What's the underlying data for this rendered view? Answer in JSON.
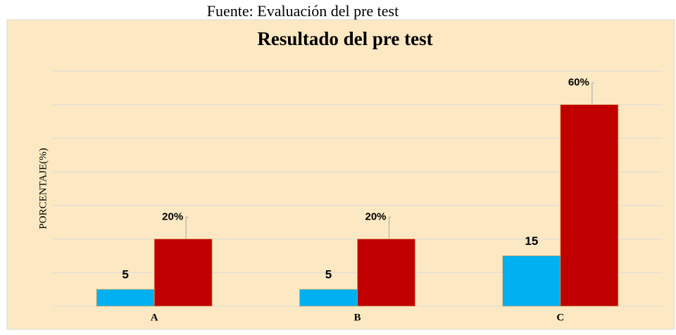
{
  "chart_data": {
    "type": "bar",
    "source": "Fuente: Evaluación del pre test",
    "title": "Resultado del pre test",
    "y_label": "PORCENTAJE(%)",
    "categories": [
      "A",
      "B",
      "C"
    ],
    "series": [
      {
        "color": "#00b0f0",
        "values": [
          5,
          5,
          15
        ]
      },
      {
        "color": "#c00000",
        "values": [
          20,
          20,
          60
        ],
        "value_labels": [
          "20%",
          "20%",
          "60%"
        ]
      }
    ],
    "ylim": [
      0,
      70
    ],
    "yticks": [
      0,
      10,
      20,
      30,
      40,
      50,
      60,
      70
    ],
    "grid": true,
    "background": "#fce9c3"
  }
}
